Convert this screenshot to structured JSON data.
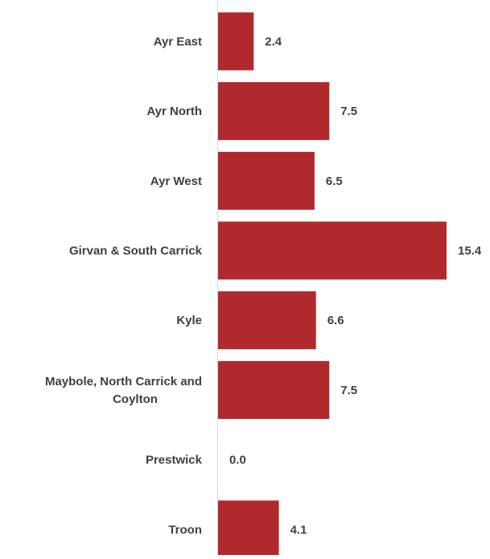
{
  "chart_data": {
    "type": "bar",
    "orientation": "horizontal",
    "categories": [
      [
        "Ayr East"
      ],
      [
        "Ayr North"
      ],
      [
        "Ayr West"
      ],
      [
        "Girvan & South Carrick"
      ],
      [
        "Kyle"
      ],
      [
        "Maybole, North Carrick and",
        "Coylton"
      ],
      [
        "Prestwick"
      ],
      [
        "Troon"
      ]
    ],
    "values": [
      2.4,
      7.5,
      6.5,
      15.4,
      6.6,
      7.5,
      0.0,
      4.1
    ],
    "value_labels": [
      "2.4",
      "7.5",
      "6.5",
      "15.4",
      "6.6",
      "7.5",
      "0.0",
      "4.1"
    ],
    "title": "",
    "xlabel": "",
    "ylabel": "",
    "xlim": [
      0,
      15.4
    ],
    "grid": false,
    "legend": "none",
    "bar_color": "#b0292c",
    "axis_color": "#d9d9d9",
    "text_color": "#3f3f3f"
  }
}
